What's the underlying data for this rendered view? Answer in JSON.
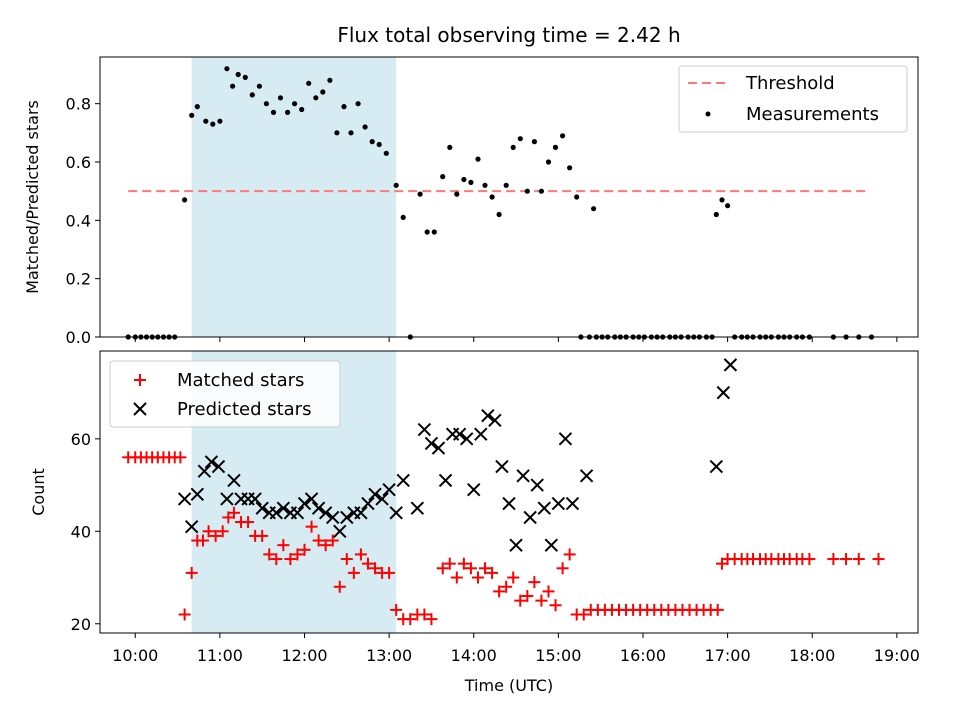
{
  "chart_data": {
    "type": "scatter",
    "title": "Flux total observing time = 2.42 h",
    "xlabel": "Time (UTC)",
    "x_ticks": [
      "10:00",
      "11:00",
      "12:00",
      "13:00",
      "14:00",
      "15:00",
      "16:00",
      "17:00",
      "18:00",
      "19:00"
    ],
    "xlim": [
      "09:35",
      "19:15"
    ],
    "shaded_interval": [
      "10:40",
      "13:05"
    ],
    "shade_color": "#add8e6",
    "top_panel": {
      "ylabel": "Matched/Predicted stars",
      "ylim": [
        0,
        0.96
      ],
      "y_ticks": [
        "0.0",
        "0.2",
        "0.4",
        "0.6",
        "0.8"
      ],
      "y_tick_values": [
        0,
        0.2,
        0.4,
        0.6,
        0.8
      ],
      "threshold": {
        "name": "Threshold",
        "value": 0.5,
        "x_range": [
          "09:55",
          "18:40"
        ],
        "color": "#ff7777"
      },
      "measurements_name": "Measurements",
      "measurements": [
        [
          "09:55",
          0
        ],
        [
          "10:00",
          0
        ],
        [
          "10:04",
          0
        ],
        [
          "10:08",
          0
        ],
        [
          "10:12",
          0
        ],
        [
          "10:16",
          0
        ],
        [
          "10:20",
          0
        ],
        [
          "10:24",
          0
        ],
        [
          "10:28",
          0
        ],
        [
          "10:35",
          0.47
        ],
        [
          "10:40",
          0.76
        ],
        [
          "10:44",
          0.79
        ],
        [
          "10:50",
          0.74
        ],
        [
          "10:55",
          0.73
        ],
        [
          "11:00",
          0.74
        ],
        [
          "11:05",
          0.92
        ],
        [
          "11:09",
          0.86
        ],
        [
          "11:13",
          0.9
        ],
        [
          "11:18",
          0.89
        ],
        [
          "11:23",
          0.83
        ],
        [
          "11:28",
          0.86
        ],
        [
          "11:33",
          0.8
        ],
        [
          "11:38",
          0.77
        ],
        [
          "11:43",
          0.82
        ],
        [
          "11:48",
          0.77
        ],
        [
          "11:53",
          0.8
        ],
        [
          "11:58",
          0.78
        ],
        [
          "12:03",
          0.87
        ],
        [
          "12:08",
          0.82
        ],
        [
          "12:13",
          0.84
        ],
        [
          "12:18",
          0.88
        ],
        [
          "12:23",
          0.7
        ],
        [
          "12:28",
          0.79
        ],
        [
          "12:33",
          0.7
        ],
        [
          "12:38",
          0.8
        ],
        [
          "12:43",
          0.72
        ],
        [
          "12:48",
          0.67
        ],
        [
          "12:53",
          0.66
        ],
        [
          "12:58",
          0.63
        ],
        [
          "13:05",
          0.52
        ],
        [
          "13:10",
          0.41
        ],
        [
          "13:15",
          0
        ],
        [
          "13:22",
          0.49
        ],
        [
          "13:27",
          0.36
        ],
        [
          "13:32",
          0.36
        ],
        [
          "13:38",
          0.55
        ],
        [
          "13:43",
          0.65
        ],
        [
          "13:48",
          0.49
        ],
        [
          "13:53",
          0.54
        ],
        [
          "13:58",
          0.53
        ],
        [
          "14:03",
          0.61
        ],
        [
          "14:08",
          0.52
        ],
        [
          "14:13",
          0.48
        ],
        [
          "14:18",
          0.42
        ],
        [
          "14:23",
          0.52
        ],
        [
          "14:28",
          0.65
        ],
        [
          "14:33",
          0.68
        ],
        [
          "14:38",
          0.5
        ],
        [
          "14:43",
          0.67
        ],
        [
          "14:48",
          0.5
        ],
        [
          "14:53",
          0.6
        ],
        [
          "14:58",
          0.65
        ],
        [
          "15:03",
          0.69
        ],
        [
          "15:08",
          0.58
        ],
        [
          "15:13",
          0.48
        ],
        [
          "15:25",
          0.44
        ],
        [
          "15:16",
          0
        ],
        [
          "15:22",
          0
        ],
        [
          "15:27",
          0
        ],
        [
          "15:31",
          0
        ],
        [
          "15:35",
          0
        ],
        [
          "15:40",
          0
        ],
        [
          "15:44",
          0
        ],
        [
          "15:48",
          0
        ],
        [
          "15:53",
          0
        ],
        [
          "15:57",
          0
        ],
        [
          "16:01",
          0
        ],
        [
          "16:06",
          0
        ],
        [
          "16:10",
          0
        ],
        [
          "16:14",
          0
        ],
        [
          "16:19",
          0
        ],
        [
          "16:23",
          0
        ],
        [
          "16:27",
          0
        ],
        [
          "16:32",
          0
        ],
        [
          "16:36",
          0
        ],
        [
          "16:40",
          0
        ],
        [
          "16:45",
          0
        ],
        [
          "16:49",
          0
        ],
        [
          "16:52",
          0.42
        ],
        [
          "16:56",
          0.47
        ],
        [
          "17:00",
          0.45
        ],
        [
          "17:05",
          0
        ],
        [
          "17:10",
          0
        ],
        [
          "17:14",
          0
        ],
        [
          "17:18",
          0
        ],
        [
          "17:23",
          0
        ],
        [
          "17:27",
          0
        ],
        [
          "17:31",
          0
        ],
        [
          "17:36",
          0
        ],
        [
          "17:40",
          0
        ],
        [
          "17:44",
          0
        ],
        [
          "17:49",
          0
        ],
        [
          "17:53",
          0
        ],
        [
          "17:58",
          0
        ],
        [
          "18:15",
          0
        ],
        [
          "18:24",
          0
        ],
        [
          "18:33",
          0
        ],
        [
          "18:42",
          0
        ]
      ]
    },
    "bottom_panel": {
      "ylabel": "Count",
      "ylim": [
        18,
        79
      ],
      "y_ticks": [
        "20",
        "40",
        "60"
      ],
      "y_tick_values": [
        20,
        40,
        60
      ],
      "matched_name": "Matched stars",
      "matched_color": "#ff0000",
      "predicted_name": "Predicted stars",
      "predicted_color": "#000000",
      "matched": [
        [
          "09:55",
          56
        ],
        [
          "10:00",
          56
        ],
        [
          "10:04",
          56
        ],
        [
          "10:08",
          56
        ],
        [
          "10:12",
          56
        ],
        [
          "10:16",
          56
        ],
        [
          "10:20",
          56
        ],
        [
          "10:24",
          56
        ],
        [
          "10:28",
          56
        ],
        [
          "10:32",
          56
        ],
        [
          "10:35",
          22
        ],
        [
          "10:40",
          31
        ],
        [
          "10:44",
          38
        ],
        [
          "10:48",
          38
        ],
        [
          "10:52",
          40
        ],
        [
          "10:57",
          39
        ],
        [
          "11:02",
          40
        ],
        [
          "11:06",
          43
        ],
        [
          "11:10",
          44
        ],
        [
          "11:15",
          42
        ],
        [
          "11:20",
          42
        ],
        [
          "11:25",
          39
        ],
        [
          "11:30",
          39
        ],
        [
          "11:35",
          35
        ],
        [
          "11:40",
          34
        ],
        [
          "11:45",
          37
        ],
        [
          "11:50",
          34
        ],
        [
          "11:55",
          35
        ],
        [
          "12:00",
          36
        ],
        [
          "12:05",
          41
        ],
        [
          "12:10",
          38
        ],
        [
          "12:15",
          37
        ],
        [
          "12:20",
          38
        ],
        [
          "12:25",
          28
        ],
        [
          "12:30",
          34
        ],
        [
          "12:35",
          31
        ],
        [
          "12:40",
          35
        ],
        [
          "12:45",
          33
        ],
        [
          "12:50",
          32
        ],
        [
          "12:55",
          31
        ],
        [
          "13:00",
          31
        ],
        [
          "13:05",
          23
        ],
        [
          "13:10",
          21
        ],
        [
          "13:15",
          21
        ],
        [
          "13:20",
          22
        ],
        [
          "13:25",
          22
        ],
        [
          "13:30",
          21
        ],
        [
          "13:38",
          32
        ],
        [
          "13:43",
          33
        ],
        [
          "13:48",
          30
        ],
        [
          "13:53",
          33
        ],
        [
          "13:58",
          32
        ],
        [
          "14:03",
          30
        ],
        [
          "14:08",
          32
        ],
        [
          "14:13",
          31
        ],
        [
          "14:18",
          27
        ],
        [
          "14:23",
          28
        ],
        [
          "14:28",
          30
        ],
        [
          "14:33",
          25
        ],
        [
          "14:38",
          26
        ],
        [
          "14:43",
          29
        ],
        [
          "14:48",
          25
        ],
        [
          "14:53",
          27
        ],
        [
          "14:58",
          24
        ],
        [
          "15:03",
          32
        ],
        [
          "15:08",
          35
        ],
        [
          "15:13",
          22
        ],
        [
          "15:18",
          22
        ],
        [
          "15:23",
          23
        ],
        [
          "15:28",
          23
        ],
        [
          "15:33",
          23
        ],
        [
          "15:38",
          23
        ],
        [
          "15:43",
          23
        ],
        [
          "15:48",
          23
        ],
        [
          "15:53",
          23
        ],
        [
          "15:58",
          23
        ],
        [
          "16:03",
          23
        ],
        [
          "16:08",
          23
        ],
        [
          "16:13",
          23
        ],
        [
          "16:18",
          23
        ],
        [
          "16:23",
          23
        ],
        [
          "16:28",
          23
        ],
        [
          "16:33",
          23
        ],
        [
          "16:38",
          23
        ],
        [
          "16:43",
          23
        ],
        [
          "16:48",
          23
        ],
        [
          "16:53",
          23
        ],
        [
          "16:56",
          33
        ],
        [
          "17:00",
          34
        ],
        [
          "17:05",
          34
        ],
        [
          "17:10",
          34
        ],
        [
          "17:14",
          34
        ],
        [
          "17:18",
          34
        ],
        [
          "17:23",
          34
        ],
        [
          "17:27",
          34
        ],
        [
          "17:31",
          34
        ],
        [
          "17:36",
          34
        ],
        [
          "17:40",
          34
        ],
        [
          "17:44",
          34
        ],
        [
          "17:49",
          34
        ],
        [
          "17:53",
          34
        ],
        [
          "17:58",
          34
        ],
        [
          "18:15",
          34
        ],
        [
          "18:24",
          34
        ],
        [
          "18:33",
          34
        ],
        [
          "18:47",
          34
        ]
      ],
      "predicted": [
        [
          "10:35",
          47
        ],
        [
          "10:40",
          41
        ],
        [
          "10:44",
          48
        ],
        [
          "10:49",
          53
        ],
        [
          "10:54",
          55
        ],
        [
          "10:59",
          54
        ],
        [
          "11:05",
          47
        ],
        [
          "11:10",
          51
        ],
        [
          "11:15",
          47
        ],
        [
          "11:20",
          47
        ],
        [
          "11:25",
          47
        ],
        [
          "11:30",
          45
        ],
        [
          "11:35",
          44
        ],
        [
          "11:40",
          44
        ],
        [
          "11:45",
          45
        ],
        [
          "11:50",
          44
        ],
        [
          "11:55",
          44
        ],
        [
          "12:00",
          46
        ],
        [
          "12:05",
          47
        ],
        [
          "12:10",
          45
        ],
        [
          "12:15",
          44
        ],
        [
          "12:20",
          43
        ],
        [
          "12:25",
          40
        ],
        [
          "12:30",
          43
        ],
        [
          "12:35",
          44
        ],
        [
          "12:40",
          44
        ],
        [
          "12:45",
          46
        ],
        [
          "12:50",
          48
        ],
        [
          "12:55",
          47
        ],
        [
          "13:00",
          49
        ],
        [
          "13:05",
          44
        ],
        [
          "13:10",
          51
        ],
        [
          "13:20",
          45
        ],
        [
          "13:25",
          62
        ],
        [
          "13:30",
          59
        ],
        [
          "13:35",
          58
        ],
        [
          "13:40",
          51
        ],
        [
          "13:45",
          61
        ],
        [
          "13:50",
          61
        ],
        [
          "13:55",
          60
        ],
        [
          "14:00",
          49
        ],
        [
          "14:05",
          61
        ],
        [
          "14:10",
          65
        ],
        [
          "14:15",
          64
        ],
        [
          "14:20",
          54
        ],
        [
          "14:25",
          46
        ],
        [
          "14:30",
          37
        ],
        [
          "14:35",
          52
        ],
        [
          "14:40",
          43
        ],
        [
          "14:45",
          50
        ],
        [
          "14:50",
          45
        ],
        [
          "14:55",
          37
        ],
        [
          "15:00",
          46
        ],
        [
          "15:05",
          60
        ],
        [
          "15:10",
          46
        ],
        [
          "15:20",
          52
        ],
        [
          "16:52",
          54
        ],
        [
          "16:57",
          70
        ],
        [
          "17:02",
          76
        ]
      ]
    }
  }
}
